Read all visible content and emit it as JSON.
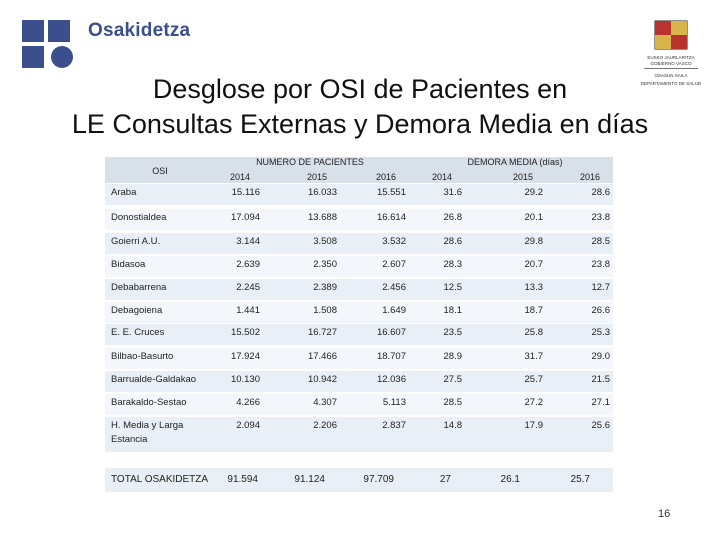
{
  "brand": {
    "name": "Osakidetza"
  },
  "government": {
    "line1": "EUSKO JAURLARITZA",
    "line2": "GOBIERNO VASCO",
    "line3": "OSASUN SAILA",
    "line4": "DEPARTAMENTO DE SALUD"
  },
  "title": {
    "line1": "Desglose por OSI de Pacientes en",
    "line2": "LE Consultas Externas y Demora Media en días"
  },
  "table": {
    "osi_header": "OSI",
    "group_patients": "NUMERO DE PACIENTES",
    "group_delay": "DEMORA MEDIA (días)",
    "years": [
      "2014",
      "2015",
      "2016",
      "2014",
      "2015",
      "2016"
    ],
    "rows": [
      {
        "name": "Araba",
        "values": [
          "15.116",
          "16.033",
          "15.551",
          "31.6",
          "29.2",
          "28.6"
        ]
      },
      {
        "name": "Donostialdea",
        "values": [
          "17.094",
          "13.688",
          "16.614",
          "26.8",
          "20.1",
          "23.8"
        ]
      },
      {
        "name": "Goierri A.U.",
        "values": [
          "3.144",
          "3.508",
          "3.532",
          "28.6",
          "29.8",
          "28.5"
        ]
      },
      {
        "name": "Bidasoa",
        "values": [
          "2.639",
          "2.350",
          "2.607",
          "28.3",
          "20.7",
          "23.8"
        ]
      },
      {
        "name": "Debabarrena",
        "values": [
          "2.245",
          "2.389",
          "2.456",
          "12.5",
          "13.3",
          "12.7"
        ]
      },
      {
        "name": "Debagoiena",
        "values": [
          "1.441",
          "1.508",
          "1.649",
          "18.1",
          "18.7",
          "26.6"
        ]
      },
      {
        "name": "E. E. Cruces",
        "values": [
          "15.502",
          "16.727",
          "16.607",
          "23.5",
          "25.8",
          "25.3"
        ]
      },
      {
        "name": "Bilbao-Basurto",
        "values": [
          "17.924",
          "17.466",
          "18.707",
          "28.9",
          "31.7",
          "29.0"
        ]
      },
      {
        "name": "Barrualde-Galdakao",
        "values": [
          "10.130",
          "10.942",
          "12.036",
          "27.5",
          "25.7",
          "21.5"
        ]
      },
      {
        "name": "Barakaldo-Sestao",
        "values": [
          "4.266",
          "4.307",
          "5.113",
          "28.5",
          "27.2",
          "27.1"
        ]
      },
      {
        "name": "H. Media y Larga",
        "name2": "Estancia",
        "values": [
          "2.094",
          "2.206",
          "2.837",
          "14.8",
          "17.9",
          "25.6"
        ]
      }
    ],
    "total": {
      "name": "TOTAL OSAKIDETZA",
      "values": [
        "91.594",
        "91.124",
        "97.709",
        "27",
        "26.1",
        "25.7"
      ]
    }
  },
  "page_number": "16",
  "colors": {
    "brand": "#3a4f8c",
    "header_bg": "#d8e0ea",
    "row_bg": "#e9eff6"
  }
}
